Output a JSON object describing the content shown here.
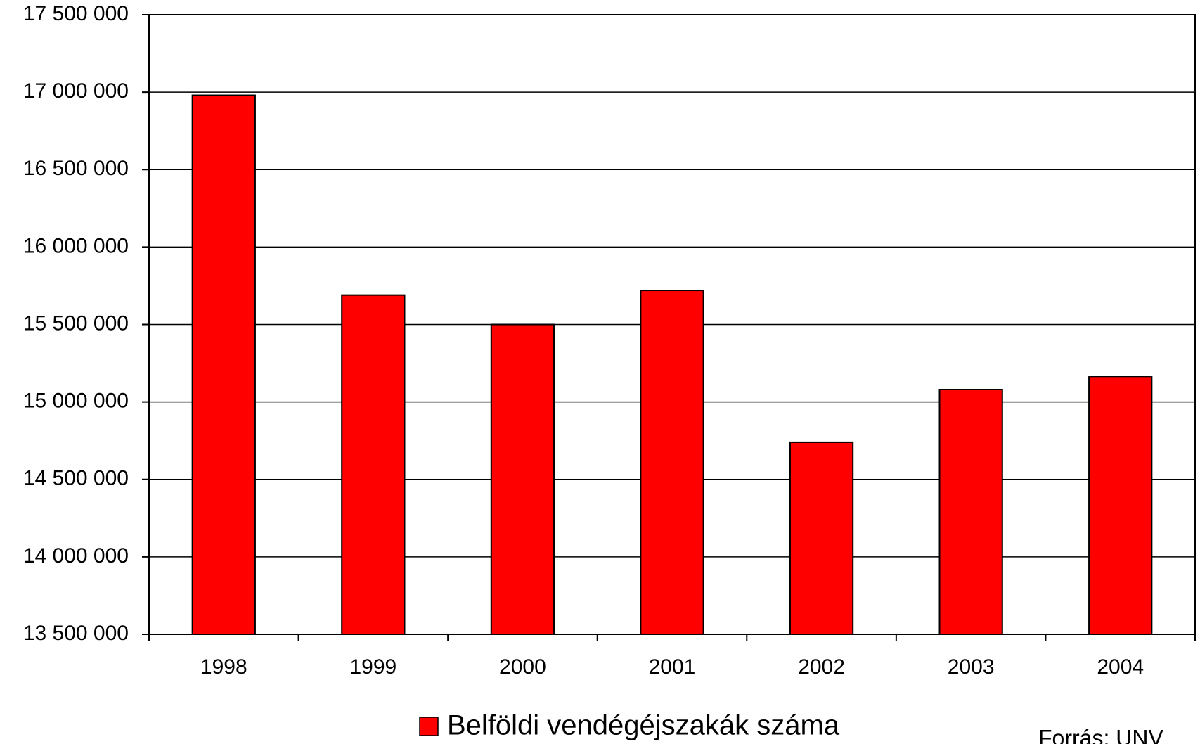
{
  "chart_data": {
    "type": "bar",
    "categories": [
      "1998",
      "1999",
      "2000",
      "2001",
      "2002",
      "2003",
      "2004"
    ],
    "series": [
      {
        "name": "Belföldi vendégéjszakák száma",
        "color": "#ff0000",
        "values": [
          16980000,
          15690000,
          15500000,
          15720000,
          14740000,
          15080000,
          15165000
        ]
      }
    ],
    "ylim": [
      13500000,
      17500000
    ],
    "yticks": [
      {
        "value": 13500000,
        "label": "13 500 000"
      },
      {
        "value": 14000000,
        "label": "14 000 000"
      },
      {
        "value": 14500000,
        "label": "14 500 000"
      },
      {
        "value": 15000000,
        "label": "15 000 000"
      },
      {
        "value": 15500000,
        "label": "15 500 000"
      },
      {
        "value": 16000000,
        "label": "16 000 000"
      },
      {
        "value": 16500000,
        "label": "16 500 000"
      },
      {
        "value": 17000000,
        "label": "17 000 000"
      },
      {
        "value": 17500000,
        "label": "17 500 000"
      }
    ],
    "grid": true,
    "legend": "bottom",
    "annotations": [
      "Forrás: UNV"
    ]
  }
}
